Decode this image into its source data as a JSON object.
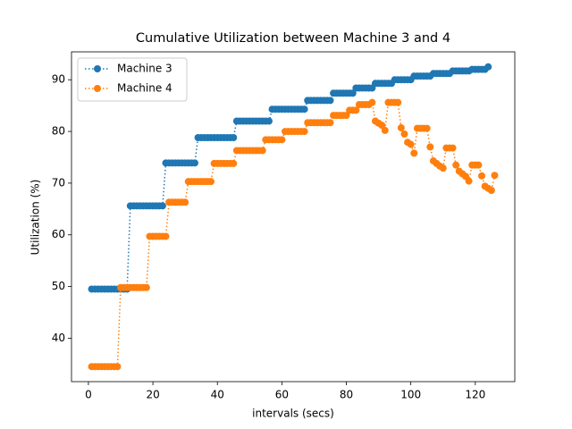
{
  "chart_data": {
    "type": "line",
    "title": "Cumulative Utilization between Machine 3 and 4",
    "x_label": "intervals (secs)",
    "y_label": "Utilization (%)",
    "xlim": [
      -5.25,
      132.25
    ],
    "ylim": [
      31.6,
      95.4
    ],
    "xticks": [
      0,
      20,
      40,
      60,
      80,
      100,
      120
    ],
    "yticks": [
      40,
      50,
      60,
      70,
      80,
      90
    ],
    "legend": "upper left",
    "series": [
      {
        "name": "Machine 3",
        "color": "#1f77b4",
        "x": [
          1,
          2,
          3,
          4,
          5,
          6,
          7,
          8,
          9,
          10,
          11,
          12,
          13,
          14,
          15,
          16,
          17,
          18,
          19,
          20,
          21,
          22,
          23,
          24,
          25,
          26,
          27,
          28,
          29,
          30,
          31,
          32,
          33,
          34,
          35,
          36,
          37,
          38,
          39,
          40,
          41,
          42,
          43,
          44,
          45,
          46,
          47,
          48,
          49,
          50,
          51,
          52,
          53,
          54,
          55,
          56,
          57,
          58,
          59,
          60,
          61,
          62,
          63,
          64,
          65,
          66,
          67,
          68,
          69,
          70,
          71,
          72,
          73,
          74,
          75,
          76,
          77,
          78,
          79,
          80,
          81,
          82,
          83,
          84,
          85,
          86,
          87,
          88,
          89,
          90,
          91,
          92,
          93,
          94,
          95,
          96,
          97,
          98,
          99,
          100,
          101,
          102,
          103,
          104,
          105,
          106,
          107,
          108,
          109,
          110,
          111,
          112,
          113,
          114,
          115,
          116,
          117,
          118,
          119,
          120,
          121,
          122,
          123,
          124
        ],
        "values": [
          49.5,
          49.5,
          49.5,
          49.5,
          49.5,
          49.5,
          49.5,
          49.5,
          49.5,
          49.5,
          49.5,
          49.5,
          65.6,
          65.6,
          65.6,
          65.6,
          65.6,
          65.6,
          65.6,
          65.6,
          65.6,
          65.6,
          65.6,
          73.9,
          73.9,
          73.9,
          73.9,
          73.9,
          73.9,
          73.9,
          73.9,
          73.9,
          73.9,
          78.8,
          78.8,
          78.8,
          78.8,
          78.8,
          78.8,
          78.8,
          78.8,
          78.8,
          78.8,
          78.8,
          78.8,
          82,
          82,
          82,
          82,
          82,
          82,
          82,
          82,
          82,
          82,
          82,
          84.3,
          84.3,
          84.3,
          84.3,
          84.3,
          84.3,
          84.3,
          84.3,
          84.3,
          84.3,
          84.3,
          86,
          86,
          86,
          86,
          86,
          86,
          86,
          86,
          87.4,
          87.4,
          87.4,
          87.4,
          87.4,
          87.4,
          87.4,
          88.4,
          88.4,
          88.4,
          88.4,
          88.4,
          88.4,
          89.3,
          89.3,
          89.3,
          89.3,
          89.3,
          89.3,
          90,
          90,
          90,
          90,
          90,
          90,
          90.7,
          90.7,
          90.7,
          90.7,
          90.7,
          90.7,
          91.2,
          91.2,
          91.2,
          91.2,
          91.2,
          91.2,
          91.7,
          91.7,
          91.7,
          91.7,
          91.7,
          91.7,
          92,
          92,
          92,
          92,
          92,
          92.5
        ]
      },
      {
        "name": "Machine 4",
        "color": "#ff7f0e",
        "x": [
          1,
          2,
          3,
          4,
          5,
          6,
          7,
          8,
          9,
          10,
          11,
          12,
          13,
          14,
          15,
          16,
          17,
          18,
          19,
          20,
          21,
          22,
          23,
          24,
          25,
          26,
          27,
          28,
          29,
          30,
          31,
          32,
          33,
          34,
          35,
          36,
          37,
          38,
          39,
          40,
          41,
          42,
          43,
          44,
          45,
          46,
          47,
          48,
          49,
          50,
          51,
          52,
          53,
          54,
          55,
          56,
          57,
          58,
          59,
          60,
          61,
          62,
          63,
          64,
          65,
          66,
          67,
          68,
          69,
          70,
          71,
          72,
          73,
          74,
          75,
          76,
          77,
          78,
          79,
          80,
          81,
          82,
          83,
          84,
          85,
          86,
          87,
          88,
          89,
          90,
          91,
          92,
          93,
          94,
          95,
          96,
          97,
          98,
          99,
          100,
          101,
          102,
          103,
          104,
          105,
          106,
          107,
          108,
          109,
          110,
          111,
          112,
          113,
          114,
          115,
          116,
          117,
          118,
          119,
          120,
          121,
          122,
          123,
          124,
          125,
          126
        ],
        "values": [
          34.5,
          34.5,
          34.5,
          34.5,
          34.5,
          34.5,
          34.5,
          34.5,
          34.5,
          49.8,
          49.8,
          49.8,
          49.8,
          49.8,
          49.8,
          49.8,
          49.8,
          49.8,
          59.7,
          59.7,
          59.7,
          59.7,
          59.7,
          59.7,
          66.3,
          66.3,
          66.3,
          66.3,
          66.3,
          66.3,
          70.3,
          70.3,
          70.3,
          70.3,
          70.3,
          70.3,
          70.3,
          70.3,
          73.8,
          73.8,
          73.8,
          73.8,
          73.8,
          73.8,
          73.8,
          76.3,
          76.3,
          76.3,
          76.3,
          76.3,
          76.3,
          76.3,
          76.3,
          76.3,
          78.4,
          78.4,
          78.4,
          78.4,
          78.4,
          78.4,
          80,
          80,
          80,
          80,
          80,
          80,
          80,
          81.7,
          81.7,
          81.7,
          81.7,
          81.7,
          81.7,
          81.7,
          81.7,
          83.1,
          83.1,
          83.1,
          83.1,
          83.1,
          84.1,
          84.1,
          84.1,
          85.2,
          85.2,
          85.2,
          85.2,
          85.6,
          82,
          81.6,
          81.2,
          80.2,
          85.6,
          85.6,
          85.6,
          85.6,
          80.7,
          79.5,
          77.9,
          77.5,
          75.8,
          80.6,
          80.6,
          80.6,
          80.6,
          77,
          74.3,
          73.8,
          73.3,
          72.9,
          76.8,
          76.8,
          76.8,
          73.5,
          72.3,
          71.8,
          71.3,
          70.4,
          73.5,
          73.5,
          73.5,
          71.4,
          69.4,
          69,
          68.6,
          71.5
        ]
      }
    ]
  }
}
